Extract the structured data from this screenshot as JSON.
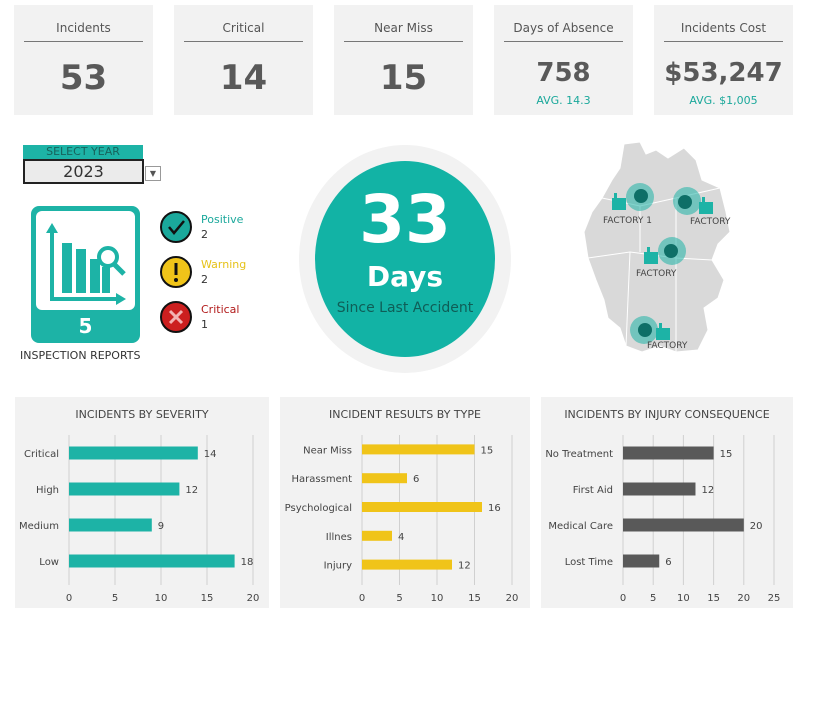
{
  "kpis": [
    {
      "title": "Incidents",
      "value": "53",
      "sub": ""
    },
    {
      "title": "Critical",
      "value": "14",
      "sub": ""
    },
    {
      "title": "Near Miss",
      "value": "15",
      "sub": ""
    },
    {
      "title": "Days of Absence",
      "value": "758",
      "sub": "AVG. 14.3"
    },
    {
      "title": "Incidents Cost",
      "value": "$53,247",
      "sub": "AVG. $1,005"
    }
  ],
  "year_select": {
    "label": "SELECT YEAR",
    "value": "2023"
  },
  "inspection": {
    "count": "5",
    "label": "INSPECTION REPORTS"
  },
  "statuses": [
    {
      "name": "Positive",
      "count": "2",
      "color": "#1aa89b"
    },
    {
      "name": "Warning",
      "count": "2",
      "color": "#e6c219"
    },
    {
      "name": "Critical",
      "count": "1",
      "color": "#b21b1b"
    }
  ],
  "days_since": {
    "value": "33",
    "unit": "Days",
    "caption": "Since Last Accident"
  },
  "factories": [
    {
      "label": "FACTORY 1"
    },
    {
      "label": "FACTORY"
    },
    {
      "label": "FACTORY"
    },
    {
      "label": "FACTORY"
    }
  ],
  "colors": {
    "teal": "#1db3a6",
    "yellow": "#f0c419",
    "gray": "#595959",
    "card": "#f2f2f2"
  },
  "chart_data": [
    {
      "type": "bar",
      "orientation": "horizontal",
      "title": "INCIDENTS BY SEVERITY",
      "categories": [
        "Critical",
        "High",
        "Medium",
        "Low"
      ],
      "values": [
        14,
        12,
        9,
        18
      ],
      "xlim": [
        0,
        20
      ],
      "ticks": [
        0,
        5,
        10,
        15,
        20
      ],
      "color": "#1db3a6",
      "grid": true
    },
    {
      "type": "bar",
      "orientation": "horizontal",
      "title": "INCIDENT RESULTS  BY TYPE",
      "categories": [
        "Near Miss",
        "Harassment",
        "Psychological",
        "Illnes",
        "Injury"
      ],
      "values": [
        15,
        6,
        16,
        4,
        12
      ],
      "xlim": [
        0,
        20
      ],
      "ticks": [
        0,
        5,
        10,
        15,
        20
      ],
      "color": "#f0c419",
      "grid": true
    },
    {
      "type": "bar",
      "orientation": "horizontal",
      "title": "INCIDENTS BY INJURY CONSEQUENCE",
      "categories": [
        "No Treatment",
        "First Aid",
        "Medical Care",
        "Lost Time"
      ],
      "values": [
        15,
        12,
        20,
        6
      ],
      "xlim": [
        0,
        25
      ],
      "ticks": [
        0,
        5,
        10,
        15,
        20,
        25
      ],
      "color": "#595959",
      "grid": true
    }
  ]
}
